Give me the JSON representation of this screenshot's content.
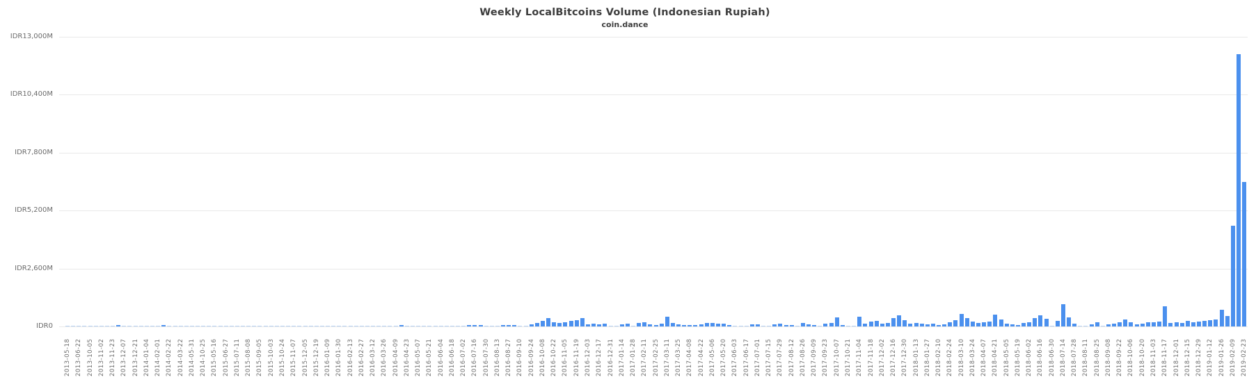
{
  "chart_data": {
    "type": "bar",
    "title": "Weekly LocalBitcoins Volume (Indonesian Rupiah)",
    "subtitle": "coin.dance",
    "series_name": "Weekly LocalBitcoins Volume",
    "unit": "IDR millions",
    "ylim": [
      0,
      13000
    ],
    "grid": "horizontal-only",
    "legend": "none",
    "y_axis": {
      "tick_values": [
        13000,
        10400,
        7800,
        5200,
        2600,
        0
      ],
      "tick_labels": [
        "IDR13,000M",
        "IDR10,400M",
        "IDR7,800M",
        "IDR5,200M",
        "IDR2,600M",
        "IDR0"
      ]
    },
    "x_axis": {
      "note": "one bar per week with data; date labels shown on every other bar, rotated 90deg",
      "tick_every_n_bars": 2,
      "tick_labels": [
        "2013-05-18",
        "2013-06-22",
        "2013-10-05",
        "2013-11-02",
        "2013-11-23",
        "2013-12-07",
        "2013-12-21",
        "2014-01-04",
        "2014-02-01",
        "2014-02-22",
        "2014-03-22",
        "2014-05-31",
        "2014-10-25",
        "2015-05-16",
        "2015-06-27",
        "2015-07-11",
        "2015-08-08",
        "2015-09-05",
        "2015-10-03",
        "2015-10-24",
        "2015-11-07",
        "2015-12-05",
        "2015-12-19",
        "2016-01-09",
        "2016-01-30",
        "2016-02-13",
        "2016-02-27",
        "2016-03-12",
        "2016-03-26",
        "2016-04-09",
        "2016-04-23",
        "2016-05-07",
        "2016-05-21",
        "2016-06-04",
        "2016-06-18",
        "2016-07-02",
        "2016-07-16",
        "2016-07-30",
        "2016-08-13",
        "2016-08-27",
        "2016-09-10",
        "2016-09-24",
        "2016-10-08",
        "2016-10-22",
        "2016-11-05",
        "2016-11-19",
        "2016-12-03",
        "2016-12-17",
        "2016-12-31",
        "2017-01-14",
        "2017-01-28",
        "2017-02-11",
        "2017-02-25",
        "2017-03-11",
        "2017-03-25",
        "2017-04-08",
        "2017-04-22",
        "2017-05-06",
        "2017-05-20",
        "2017-06-03",
        "2017-06-17",
        "2017-07-01",
        "2017-07-15",
        "2017-07-29",
        "2017-08-12",
        "2017-08-26",
        "2017-09-09",
        "2017-09-23",
        "2017-10-07",
        "2017-10-21",
        "2017-11-04",
        "2017-11-18",
        "2017-12-02",
        "2017-12-16",
        "2017-12-30",
        "2018-01-13",
        "2018-01-27",
        "2018-02-10",
        "2018-02-24",
        "2018-03-10",
        "2018-03-24",
        "2018-04-07",
        "2018-04-21",
        "2018-05-05",
        "2018-05-19",
        "2018-06-02",
        "2018-06-16",
        "2018-06-30",
        "2018-07-14",
        "2018-07-28",
        "2018-08-11",
        "2018-08-25",
        "2018-09-08",
        "2018-09-22",
        "2018-10-06",
        "2018-10-20",
        "2018-11-03",
        "2018-11-17",
        "2018-12-01",
        "2018-12-15",
        "2018-12-29",
        "2019-01-12",
        "2019-01-26",
        "2019-02-09",
        "2019-02-23"
      ]
    },
    "values_m_idr": [
      20,
      10,
      15,
      5,
      10,
      20,
      25,
      15,
      45,
      50,
      40,
      30,
      35,
      20,
      25,
      15,
      30,
      50,
      25,
      15,
      20,
      10,
      15,
      10,
      20,
      10,
      15,
      10,
      20,
      15,
      25,
      10,
      15,
      20,
      15,
      10,
      20,
      25,
      15,
      20,
      15,
      10,
      20,
      15,
      25,
      20,
      15,
      10,
      20,
      25,
      45,
      40,
      35,
      30,
      40,
      35,
      30,
      45,
      40,
      50,
      45,
      35,
      30,
      25,
      35,
      30,
      45,
      25,
      15,
      45,
      25,
      55,
      65,
      55,
      45,
      35,
      25,
      75,
      65,
      55,
      20,
      10,
      100,
      150,
      265,
      370,
      200,
      160,
      190,
      265,
      285,
      370,
      100,
      130,
      80,
      130,
      45,
      35,
      100,
      120,
      25,
      170,
      200,
      100,
      60,
      130,
      440,
      150,
      90,
      60,
      75,
      65,
      110,
      170,
      150,
      120,
      130,
      50,
      35,
      25,
      30,
      90,
      80,
      30,
      40,
      100,
      120,
      50,
      50,
      40,
      160,
      100,
      60,
      40,
      130,
      160,
      400,
      50,
      15,
      20,
      430,
      140,
      225,
      255,
      120,
      165,
      380,
      505,
      285,
      130,
      160,
      140,
      90,
      120,
      60,
      90,
      180,
      280,
      550,
      380,
      230,
      150,
      180,
      230,
      535,
      300,
      120,
      90,
      60,
      160,
      180,
      380,
      500,
      350,
      30,
      255,
      1005,
      400,
      120,
      30,
      40,
      90,
      200,
      30,
      90,
      120,
      200,
      300,
      180,
      90,
      120,
      200,
      180,
      230,
      900,
      150,
      180,
      160,
      250,
      180,
      230,
      260,
      290,
      300,
      755,
      460,
      4530,
      12220,
      6490
    ],
    "colors": {
      "bar": "#4b90ee",
      "bar_faint": "#b9d3f5",
      "gridline": "#e9e9e9",
      "title_text": "#3d3d3d",
      "axis_text": "#6b6b6b"
    }
  }
}
